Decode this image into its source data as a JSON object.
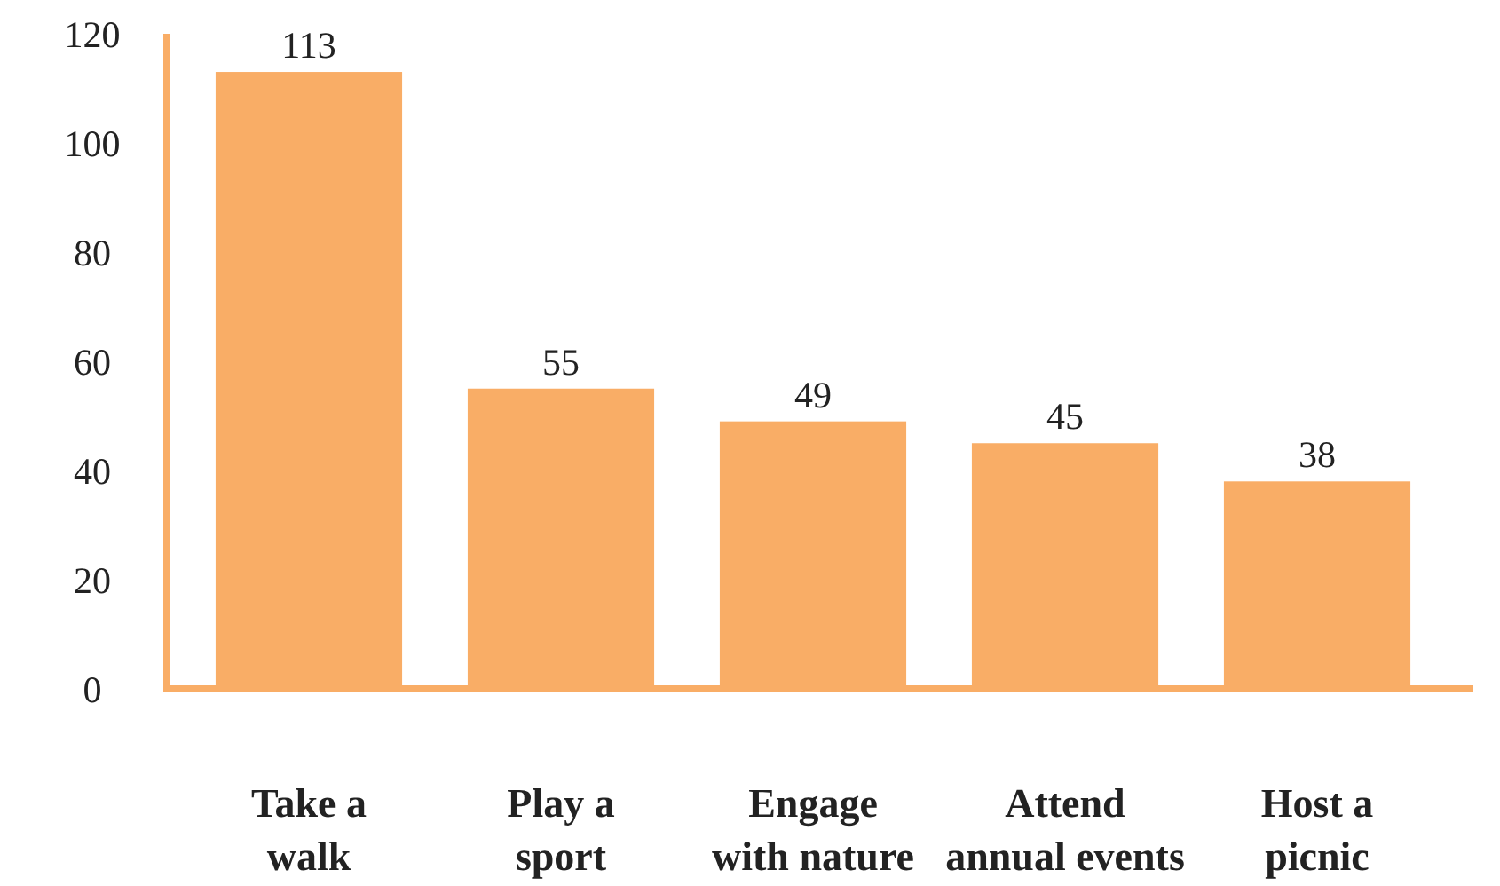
{
  "chart_data": {
    "type": "bar",
    "categories": [
      "Take a walk",
      "Play a sport",
      "Engage with nature",
      "Attend annual events",
      "Host a picnic"
    ],
    "values": [
      113,
      55,
      49,
      45,
      38
    ],
    "color": "#f9ad66",
    "ylim": [
      0,
      120
    ],
    "yticks": [
      0,
      20,
      40,
      60,
      80,
      100,
      120
    ],
    "grid": false,
    "data_labels": true
  }
}
